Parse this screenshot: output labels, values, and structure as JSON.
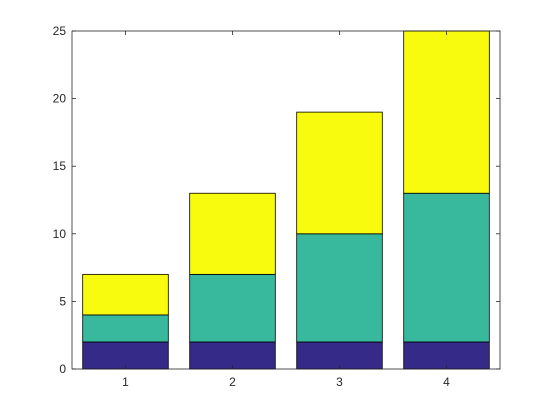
{
  "chart_data": {
    "type": "bar",
    "stacked": true,
    "categories": [
      "1",
      "2",
      "3",
      "4"
    ],
    "series": [
      {
        "values": [
          2,
          2,
          2,
          2
        ],
        "color": "#352a87"
      },
      {
        "values": [
          2,
          5,
          8,
          11
        ],
        "color": "#38b99e"
      },
      {
        "values": [
          3,
          6,
          9,
          12
        ],
        "color": "#f9fb0e"
      }
    ],
    "ylim": [
      0,
      25
    ],
    "yticks": [
      0,
      5,
      10,
      15,
      20,
      25
    ],
    "xticks": [
      "1",
      "2",
      "3",
      "4"
    ],
    "grid": false,
    "legend": "none"
  }
}
